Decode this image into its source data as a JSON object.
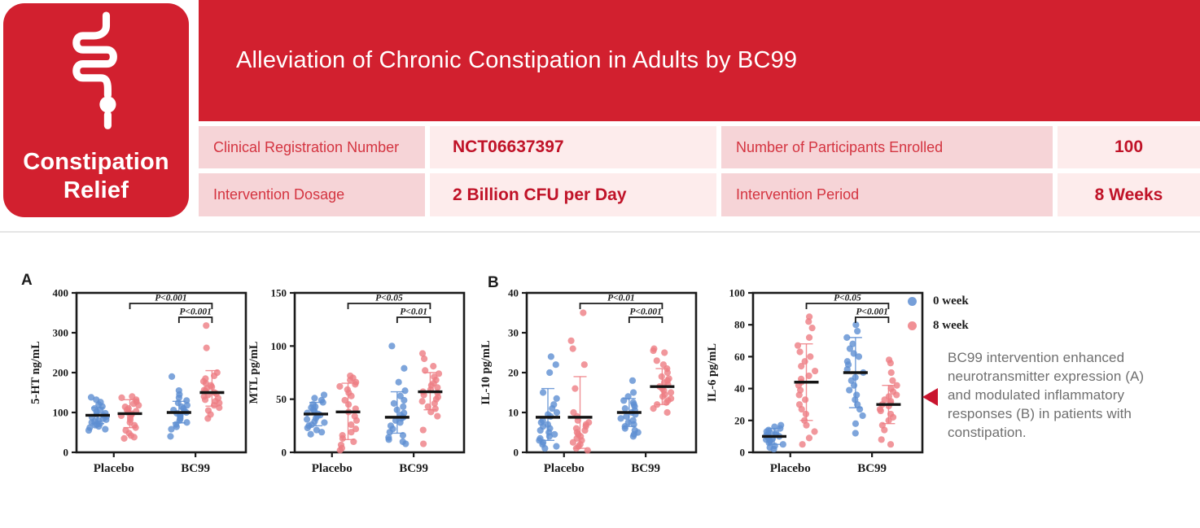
{
  "logo": {
    "line1": "Constipation",
    "line2": "Relief"
  },
  "header": {
    "title": "Alleviation of Chronic Constipation in Adults by BC99"
  },
  "info_table": {
    "rows": [
      [
        "Clinical Registration Number",
        "NCT06637397",
        "Number of Participants Enrolled",
        "100"
      ],
      [
        "Intervention Dosage",
        "2 Billion CFU per Day",
        "Intervention Period",
        "8 Weeks"
      ]
    ]
  },
  "panels": [
    {
      "label": "A"
    },
    {
      "label": "B"
    }
  ],
  "legend": {
    "items": [
      {
        "label": "0 week",
        "color_key": "week0"
      },
      {
        "label": "8 week",
        "color_key": "week8"
      }
    ]
  },
  "annotation": {
    "text": "BC99 intervention enhanced neurotransmitter expression (A) and modulated inflammatory responses (B) in patients with constipation."
  },
  "colors": {
    "brand_red": "#d2202f",
    "marker_red": "#c9142e",
    "label_cell_bg": "#f6d4d7",
    "value_cell_bg": "#fdecec",
    "label_text": "#d43440",
    "value_text": "#c01328",
    "annotation_text": "#6f6f6f",
    "week0": "#5e8ed2",
    "week8": "#ee7d83"
  },
  "chart_data": [
    {
      "type": "scatter",
      "panel": "A",
      "ylabel": "5-HT ng/mL",
      "ylim": [
        0,
        400
      ],
      "yticks": [
        0,
        100,
        200,
        300,
        400
      ],
      "categories": [
        "Placebo",
        "BC99"
      ],
      "clusters": [
        {
          "group": "Placebo",
          "series": "0 week",
          "color_key": "week0",
          "median": 93,
          "whisker": [
            72,
            112
          ],
          "values": [
            55,
            58,
            62,
            65,
            68,
            70,
            72,
            75,
            78,
            80,
            82,
            85,
            88,
            90,
            93,
            95,
            98,
            102,
            106,
            110,
            115,
            120,
            126,
            132,
            138
          ]
        },
        {
          "group": "Placebo",
          "series": "8 week",
          "color_key": "week8",
          "median": 97,
          "whisker": [
            62,
            132
          ],
          "values": [
            35,
            38,
            42,
            48,
            55,
            62,
            68,
            75,
            82,
            88,
            92,
            95,
            97,
            100,
            103,
            106,
            110,
            114,
            118,
            122,
            127,
            132,
            137,
            140
          ]
        },
        {
          "group": "BC99",
          "series": "0 week",
          "color_key": "week0",
          "median": 100,
          "whisker": [
            74,
            128
          ],
          "values": [
            40,
            58,
            64,
            70,
            75,
            80,
            84,
            88,
            92,
            95,
            98,
            100,
            103,
            106,
            110,
            114,
            118,
            124,
            130,
            137,
            145,
            155,
            190
          ]
        },
        {
          "group": "BC99",
          "series": "8 week",
          "color_key": "week8",
          "median": 150,
          "whisker": [
            116,
            205
          ],
          "values": [
            85,
            95,
            105,
            112,
            118,
            124,
            128,
            132,
            136,
            140,
            144,
            147,
            150,
            153,
            156,
            160,
            164,
            168,
            173,
            178,
            185,
            192,
            200,
            262,
            318
          ]
        }
      ],
      "significance": [
        {
          "label": "P<0.001",
          "from_cluster": 1,
          "to_cluster": 3,
          "level": "top"
        },
        {
          "label": "P<0.001",
          "from_cluster": 2,
          "to_cluster": 3,
          "level": "inner"
        }
      ]
    },
    {
      "type": "scatter",
      "panel": "A",
      "ylabel": "MTL pg/mL",
      "ylim": [
        0,
        150
      ],
      "yticks": [
        0,
        50,
        100,
        150
      ],
      "categories": [
        "Placebo",
        "BC99"
      ],
      "clusters": [
        {
          "group": "Placebo",
          "series": "0 week",
          "color_key": "week0",
          "median": 36,
          "whisker": [
            25,
            47
          ],
          "values": [
            17,
            19,
            21,
            23,
            25,
            26,
            28,
            29,
            31,
            32,
            34,
            35,
            36,
            37,
            39,
            40,
            42,
            43,
            45,
            47,
            49,
            51,
            54
          ]
        },
        {
          "group": "Placebo",
          "series": "8 week",
          "color_key": "week8",
          "median": 38,
          "whisker": [
            12,
            65
          ],
          "values": [
            2,
            4,
            7,
            10,
            13,
            16,
            19,
            22,
            26,
            30,
            34,
            38,
            41,
            45,
            49,
            53,
            56,
            59,
            62,
            64,
            66,
            68,
            70,
            72
          ]
        },
        {
          "group": "BC99",
          "series": "0 week",
          "color_key": "week0",
          "median": 33,
          "whisker": [
            18,
            57
          ],
          "values": [
            8,
            10,
            12,
            14,
            16,
            19,
            22,
            25,
            28,
            30,
            32,
            33,
            35,
            37,
            40,
            43,
            46,
            49,
            53,
            58,
            66,
            79,
            100
          ]
        },
        {
          "group": "BC99",
          "series": "8 week",
          "color_key": "week8",
          "median": 57,
          "whisker": [
            40,
            75
          ],
          "values": [
            8,
            21,
            34,
            38,
            41,
            43,
            46,
            48,
            50,
            52,
            54,
            56,
            57,
            59,
            61,
            63,
            65,
            68,
            71,
            74,
            77,
            81,
            88,
            93
          ]
        }
      ],
      "significance": [
        {
          "label": "P<0.05",
          "from_cluster": 1,
          "to_cluster": 3,
          "level": "top"
        },
        {
          "label": "P<0.01",
          "from_cluster": 2,
          "to_cluster": 3,
          "level": "inner"
        }
      ]
    },
    {
      "type": "scatter",
      "panel": "B",
      "ylabel": "IL-10 pg/mL",
      "ylim": [
        0,
        40
      ],
      "yticks": [
        0,
        10,
        20,
        30,
        40
      ],
      "categories": [
        "Placebo",
        "BC99"
      ],
      "clusters": [
        {
          "group": "Placebo",
          "series": "0 week",
          "color_key": "week0",
          "median": 8.8,
          "whisker": [
            3,
            16
          ],
          "values": [
            1,
            1.5,
            2,
            2.5,
            3,
            3.5,
            4,
            4.5,
            5,
            5.5,
            6,
            6.5,
            7,
            7.5,
            8,
            9,
            9.5,
            10,
            11,
            12,
            13.5,
            15,
            20,
            22,
            24
          ]
        },
        {
          "group": "Placebo",
          "series": "8 week",
          "color_key": "week8",
          "median": 8.8,
          "whisker": [
            1,
            19
          ],
          "values": [
            0.5,
            1,
            1.5,
            2,
            2.5,
            3,
            3.5,
            4,
            4.5,
            5,
            5.5,
            6,
            6.5,
            7,
            7.5,
            8,
            9,
            10,
            16,
            22,
            26,
            28,
            35
          ]
        },
        {
          "group": "BC99",
          "series": "0 week",
          "color_key": "week0",
          "median": 10,
          "whisker": [
            6.5,
            13.5
          ],
          "values": [
            4,
            4.5,
            5,
            5.5,
            6,
            6.5,
            7,
            7.5,
            8,
            8.5,
            9,
            9.5,
            10,
            10.5,
            11,
            11.5,
            12,
            12.5,
            13,
            14,
            15,
            18
          ]
        },
        {
          "group": "BC99",
          "series": "8 week",
          "color_key": "week8",
          "median": 16.5,
          "whisker": [
            12,
            21
          ],
          "values": [
            10,
            11,
            12,
            12.5,
            13,
            13.5,
            14,
            14.5,
            15,
            15.5,
            16,
            16.5,
            17,
            17.5,
            18,
            18.5,
            19,
            20,
            21,
            22,
            23,
            25,
            25.5,
            26
          ]
        }
      ],
      "significance": [
        {
          "label": "P<0.01",
          "from_cluster": 1,
          "to_cluster": 3,
          "level": "top"
        },
        {
          "label": "P<0.001",
          "from_cluster": 2,
          "to_cluster": 3,
          "level": "inner"
        }
      ]
    },
    {
      "type": "scatter",
      "panel": "B",
      "ylabel": "IL-6 pg/mL",
      "ylim": [
        0,
        100
      ],
      "yticks": [
        0,
        20,
        40,
        60,
        80,
        100
      ],
      "categories": [
        "Placebo",
        "BC99"
      ],
      "clusters": [
        {
          "group": "Placebo",
          "series": "0 week",
          "color_key": "week0",
          "median": 10,
          "whisker": [
            5,
            15
          ],
          "values": [
            2,
            3,
            4,
            5,
            6,
            7,
            7.5,
            8,
            8.5,
            9,
            9.5,
            10,
            10.5,
            11,
            11.5,
            12,
            12.5,
            13,
            14,
            15,
            16,
            17
          ]
        },
        {
          "group": "Placebo",
          "series": "8 week",
          "color_key": "week8",
          "median": 44,
          "whisker": [
            20,
            68
          ],
          "values": [
            5,
            9,
            13,
            17,
            20,
            24,
            27,
            30,
            33,
            36,
            39,
            42,
            44,
            46,
            48,
            51,
            54,
            57,
            60,
            63,
            67,
            72,
            78,
            82,
            85
          ]
        },
        {
          "group": "BC99",
          "series": "0 week",
          "color_key": "week0",
          "median": 50,
          "whisker": [
            28,
            72
          ],
          "values": [
            12,
            18,
            23,
            27,
            30,
            33,
            36,
            39,
            42,
            45,
            47,
            50,
            52,
            55,
            57,
            60,
            62,
            65,
            68,
            72,
            76,
            80
          ]
        },
        {
          "group": "BC99",
          "series": "8 week",
          "color_key": "week8",
          "median": 30,
          "whisker": [
            18,
            42
          ],
          "values": [
            5,
            8,
            14,
            17,
            20,
            22,
            24,
            26,
            27,
            29,
            30,
            31,
            32,
            33,
            35,
            36,
            38,
            40,
            42,
            45,
            50,
            56,
            58
          ]
        }
      ],
      "significance": [
        {
          "label": "P<0.05",
          "from_cluster": 1,
          "to_cluster": 3,
          "level": "top"
        },
        {
          "label": "P<0.001",
          "from_cluster": 2,
          "to_cluster": 3,
          "level": "inner"
        }
      ]
    }
  ]
}
